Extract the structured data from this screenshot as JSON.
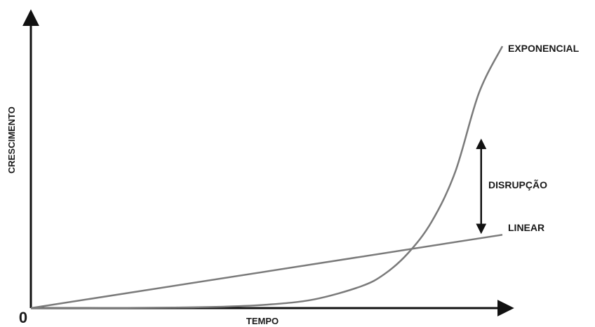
{
  "chart_data": {
    "type": "line",
    "title": "",
    "xlabel": "TEMPO",
    "ylabel": "CRESCIMENTO",
    "origin_label": "0",
    "x_range": [
      0,
      1
    ],
    "y_range": [
      0,
      1
    ],
    "grid": false,
    "legend": "none",
    "axis_color": "#111111",
    "series": [
      {
        "name": "LINEAR",
        "color": "#7a7a7a",
        "points": [
          [
            0,
            0
          ],
          [
            1,
            0.28
          ]
        ]
      },
      {
        "name": "EXPONENCIAL",
        "color": "#7a7a7a",
        "points": [
          [
            0,
            0
          ],
          [
            0.1,
            0.0003
          ],
          [
            0.2,
            0.0007
          ],
          [
            0.3,
            0.002
          ],
          [
            0.4,
            0.005
          ],
          [
            0.5,
            0.013
          ],
          [
            0.6,
            0.033
          ],
          [
            0.7,
            0.083
          ],
          [
            0.75,
            0.13
          ],
          [
            0.8,
            0.21
          ],
          [
            0.85,
            0.33
          ],
          [
            0.9,
            0.52
          ],
          [
            0.95,
            0.82
          ],
          [
            1.0,
            1.0
          ]
        ]
      }
    ],
    "annotations": [
      {
        "text": "DISRUPÇÃO",
        "type": "double-arrow",
        "x": 0.955,
        "y_from": 0.28,
        "y_to": 0.65,
        "color": "#111111"
      }
    ]
  }
}
